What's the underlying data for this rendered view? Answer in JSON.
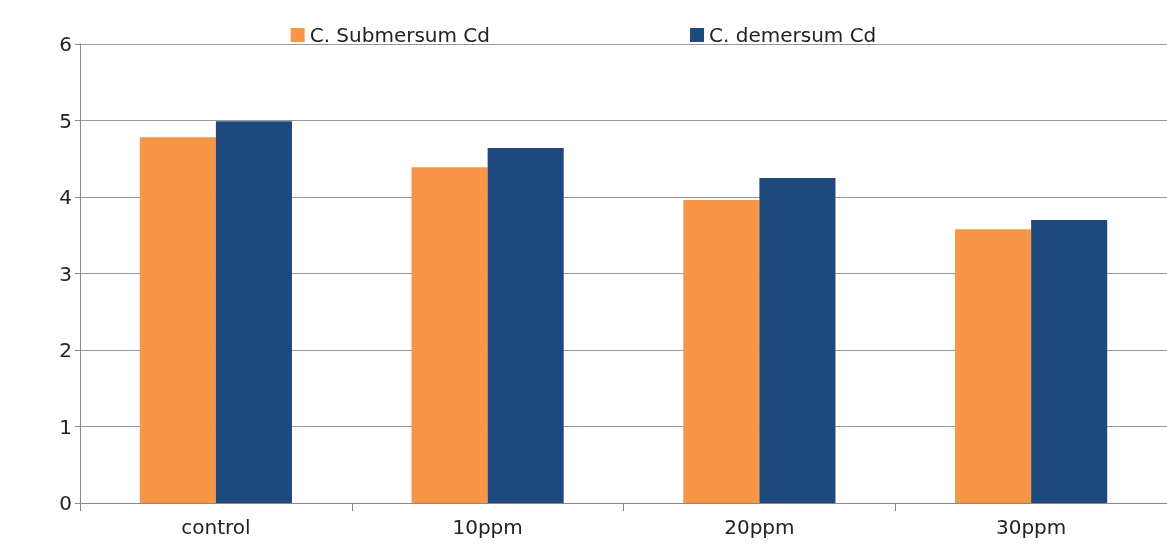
{
  "chart_data": {
    "type": "bar",
    "categories": [
      "control",
      "10ppm",
      "20ppm",
      "30ppm"
    ],
    "series": [
      {
        "name": "C. Submersum Cd",
        "color": "#f79646",
        "values": [
          4.78,
          4.39,
          3.96,
          3.58
        ]
      },
      {
        "name": "C. demersum Cd",
        "color": "#1f497d",
        "values": [
          4.99,
          4.64,
          4.25,
          3.7
        ]
      }
    ],
    "ylim": [
      0,
      6
    ],
    "yticks": [
      0,
      1,
      2,
      3,
      4,
      5,
      6
    ],
    "grid": "y",
    "legend": "top"
  }
}
